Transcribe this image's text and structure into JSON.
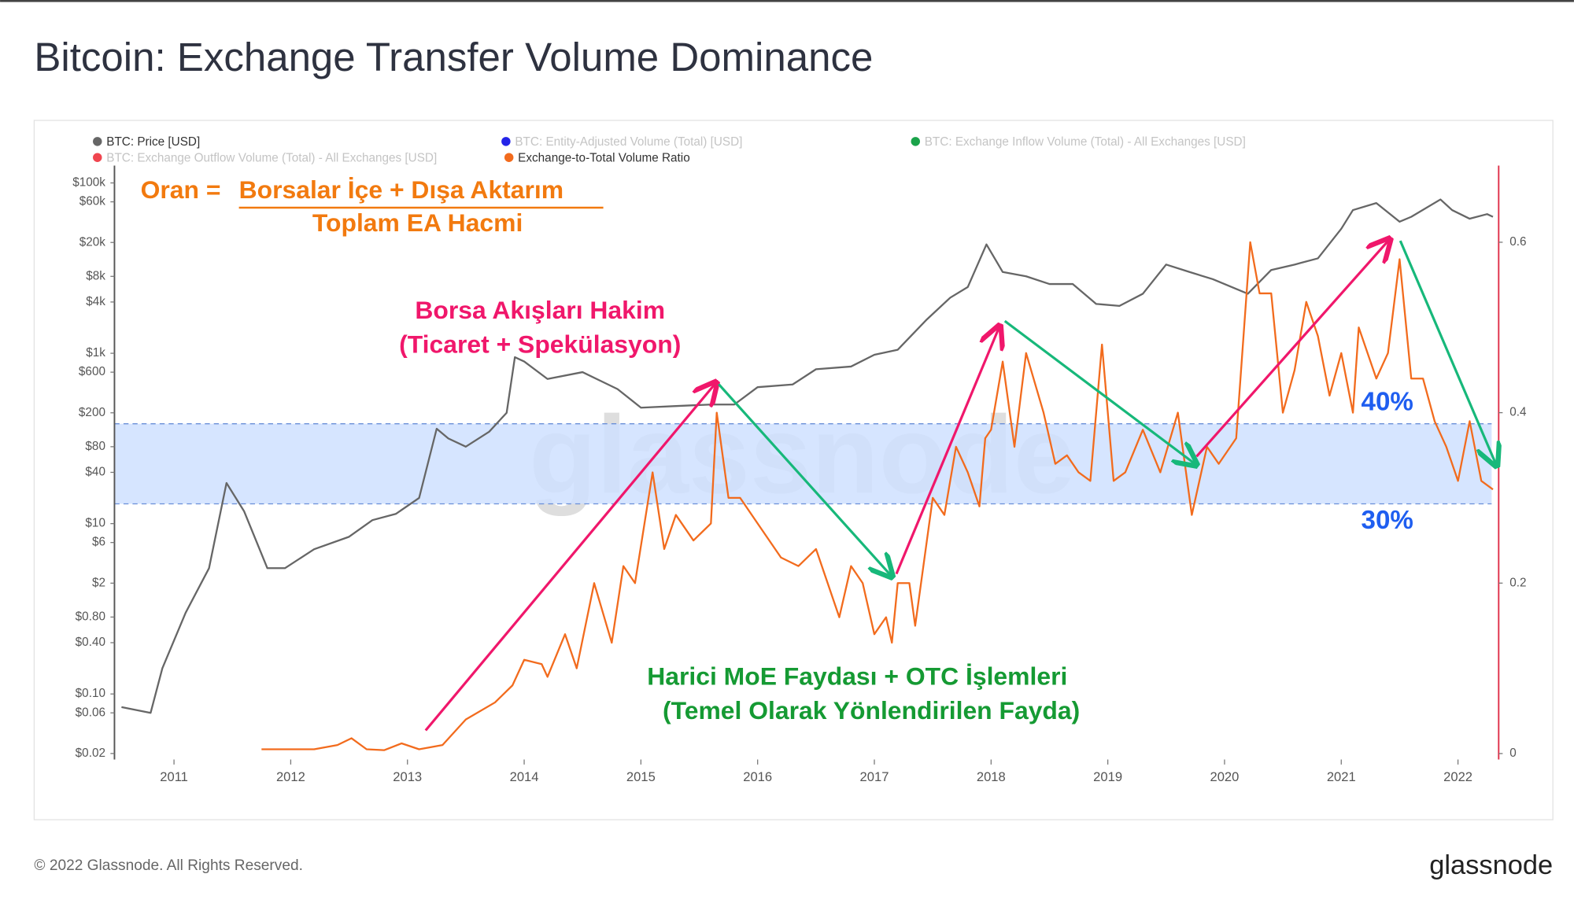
{
  "title": "Bitcoin: Exchange Transfer Volume Dominance",
  "footer": "© 2022 Glassnode. All Rights Reserved.",
  "logo": "glassnode",
  "chart_data": {
    "type": "line",
    "watermark": "glassnode",
    "x": null,
    "xlim": [
      2010.49,
      2022.34
    ],
    "xticks": [
      2011,
      2012,
      2013,
      2014,
      2015,
      2016,
      2017,
      2018,
      2019,
      2020,
      2021,
      2022
    ],
    "ylim": [
      0.017,
      160000
    ],
    "log_y": true,
    "yticks": [
      {
        "value": 100000,
        "label": "$100k"
      },
      {
        "value": 60000,
        "label": "$60k"
      },
      {
        "value": 20000,
        "label": "$20k"
      },
      {
        "value": 8000,
        "label": "$8k"
      },
      {
        "value": 4000,
        "label": "$4k"
      },
      {
        "value": 1000,
        "label": "$1k"
      },
      {
        "value": 600,
        "label": "$600"
      },
      {
        "value": 200,
        "label": "$200"
      },
      {
        "value": 80,
        "label": "$80"
      },
      {
        "value": 40,
        "label": "$40"
      },
      {
        "value": 10,
        "label": "$10"
      },
      {
        "value": 6,
        "label": "$6"
      },
      {
        "value": 2,
        "label": "$2"
      },
      {
        "value": 0.8,
        "label": "$0.80"
      },
      {
        "value": 0.4,
        "label": "$0.40"
      },
      {
        "value": 0.1,
        "label": "$0.10"
      },
      {
        "value": 0.06,
        "label": "$0.06"
      },
      {
        "value": 0.02,
        "label": "$0.02"
      }
    ],
    "y2lim": [
      -0.007,
      0.69
    ],
    "y2ticks": [
      0,
      0.2,
      0.4,
      0.6
    ],
    "band": {
      "y2range": [
        0.293,
        0.387
      ],
      "color": "#cfe0ff"
    },
    "series": [
      {
        "name": "BTC: Price [USD]",
        "color": "#666666",
        "axis": "y",
        "x": [
          2010.55,
          2010.8,
          2010.9,
          2011.1,
          2011.3,
          2011.45,
          2011.6,
          2011.8,
          2011.95,
          2012.2,
          2012.5,
          2012.7,
          2012.9,
          2013.1,
          2013.25,
          2013.35,
          2013.5,
          2013.7,
          2013.85,
          2013.92,
          2014.0,
          2014.2,
          2014.5,
          2014.8,
          2015.0,
          2015.3,
          2015.6,
          2015.8,
          2016.0,
          2016.3,
          2016.5,
          2016.8,
          2017.0,
          2017.2,
          2017.45,
          2017.65,
          2017.8,
          2017.96,
          2018.1,
          2018.3,
          2018.5,
          2018.7,
          2018.9,
          2019.1,
          2019.3,
          2019.5,
          2019.7,
          2019.9,
          2020.2,
          2020.4,
          2020.6,
          2020.8,
          2021.0,
          2021.1,
          2021.3,
          2021.5,
          2021.6,
          2021.85,
          2021.95,
          2022.1,
          2022.25,
          2022.3
        ],
        "values": [
          0.07,
          0.06,
          0.2,
          0.9,
          3,
          30,
          14,
          3,
          3,
          5,
          7,
          11,
          13,
          20,
          130,
          100,
          80,
          120,
          200,
          900,
          800,
          500,
          600,
          380,
          230,
          240,
          250,
          250,
          400,
          430,
          650,
          700,
          960,
          1100,
          2500,
          4500,
          6000,
          19000,
          9000,
          8000,
          6500,
          6500,
          3800,
          3600,
          5000,
          11000,
          9000,
          7400,
          5000,
          9500,
          11000,
          13000,
          29000,
          48000,
          58000,
          35000,
          40000,
          64000,
          48000,
          38000,
          43000,
          40000
        ]
      },
      {
        "name": "Exchange-to-Total Volume Ratio",
        "color": "#f26b1d",
        "axis": "y2",
        "x": [
          2011.75,
          2012.2,
          2012.4,
          2012.52,
          2012.65,
          2012.8,
          2012.95,
          2013.1,
          2013.3,
          2013.5,
          2013.75,
          2013.9,
          2014.0,
          2014.15,
          2014.2,
          2014.35,
          2014.45,
          2014.6,
          2014.75,
          2014.85,
          2014.95,
          2015.1,
          2015.2,
          2015.3,
          2015.45,
          2015.6,
          2015.65,
          2015.75,
          2015.85,
          2016.0,
          2016.2,
          2016.35,
          2016.5,
          2016.6,
          2016.7,
          2016.8,
          2016.9,
          2017.0,
          2017.1,
          2017.15,
          2017.2,
          2017.3,
          2017.35,
          2017.5,
          2017.6,
          2017.7,
          2017.8,
          2017.9,
          2017.95,
          2018.0,
          2018.1,
          2018.2,
          2018.3,
          2018.45,
          2018.55,
          2018.65,
          2018.75,
          2018.85,
          2018.95,
          2019.05,
          2019.15,
          2019.3,
          2019.45,
          2019.6,
          2019.72,
          2019.85,
          2019.95,
          2020.1,
          2020.22,
          2020.3,
          2020.4,
          2020.5,
          2020.6,
          2020.7,
          2020.8,
          2020.9,
          2021.0,
          2021.1,
          2021.15,
          2021.3,
          2021.4,
          2021.5,
          2021.6,
          2021.7,
          2021.8,
          2021.9,
          2022.0,
          2022.1,
          2022.2,
          2022.3
        ],
        "values": [
          0.005,
          0.005,
          0.01,
          0.018,
          0.005,
          0.004,
          0.012,
          0.005,
          0.01,
          0.04,
          0.06,
          0.08,
          0.11,
          0.105,
          0.09,
          0.14,
          0.1,
          0.2,
          0.13,
          0.22,
          0.2,
          0.33,
          0.24,
          0.28,
          0.25,
          0.27,
          0.4,
          0.3,
          0.3,
          0.27,
          0.23,
          0.22,
          0.24,
          0.2,
          0.16,
          0.22,
          0.2,
          0.14,
          0.16,
          0.13,
          0.2,
          0.2,
          0.15,
          0.3,
          0.28,
          0.36,
          0.33,
          0.29,
          0.37,
          0.38,
          0.46,
          0.36,
          0.47,
          0.4,
          0.34,
          0.35,
          0.33,
          0.32,
          0.48,
          0.32,
          0.33,
          0.38,
          0.33,
          0.4,
          0.28,
          0.36,
          0.34,
          0.37,
          0.6,
          0.54,
          0.54,
          0.4,
          0.45,
          0.53,
          0.49,
          0.42,
          0.47,
          0.4,
          0.5,
          0.44,
          0.47,
          0.58,
          0.44,
          0.44,
          0.39,
          0.36,
          0.32,
          0.39,
          0.32,
          0.31
        ]
      }
    ],
    "inactive_series": [
      {
        "name": "BTC: Entity-Adjusted Volume (Total) [USD]",
        "color": "#2323e8"
      },
      {
        "name": "BTC: Exchange Inflow Volume (Total) - All Exchanges [USD]",
        "color": "#1aa34a"
      },
      {
        "name": "BTC: Exchange Outflow Volume (Total) - All Exchanges [USD]",
        "color": "#f0454f"
      }
    ],
    "annotations": {
      "formula_lhs": "Oran =",
      "formula_numerator": "Borsalar İçe + Dışa Aktarım",
      "formula_denominator": "Toplam EA Hacmi",
      "pink_line1": "Borsa Akışları Hakim",
      "pink_line2": "(Ticaret + Spekülasyon)",
      "green_line1": "Harici MoE Faydası + OTC İşlemleri",
      "green_line2": "(Temel Olarak Yönlendirilen Fayda)",
      "band_top": "40%",
      "band_bottom": "30%"
    }
  }
}
